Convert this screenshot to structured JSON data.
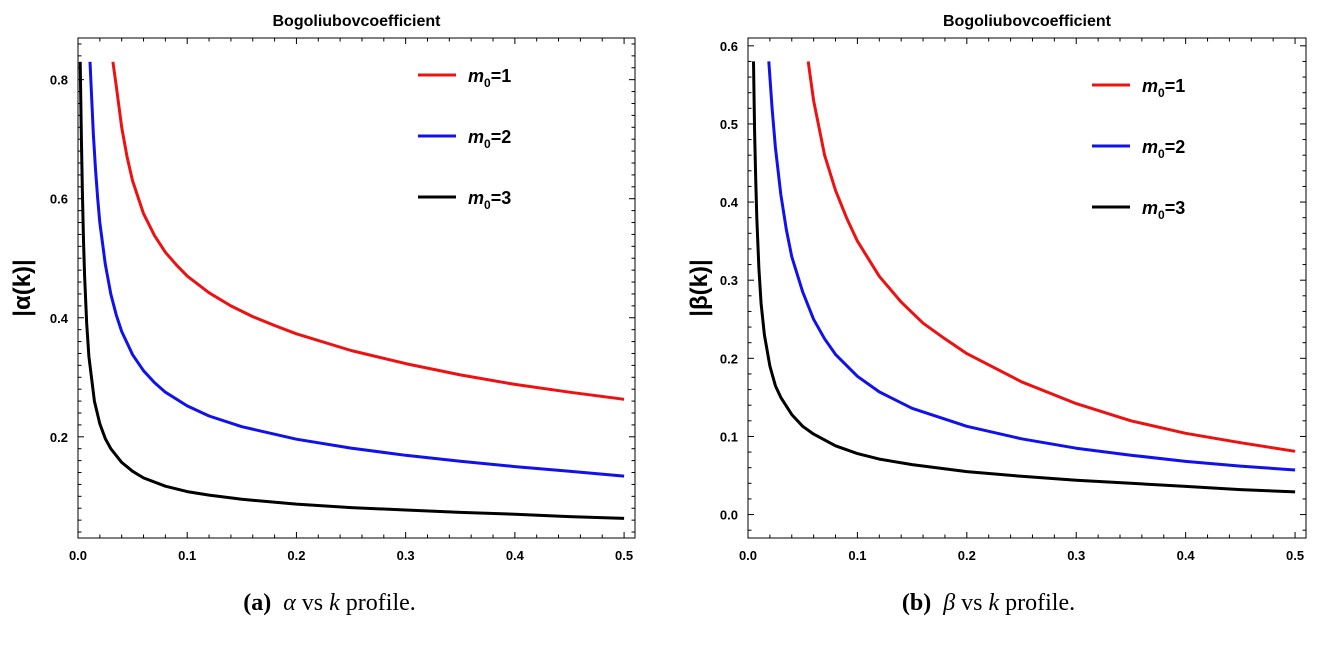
{
  "colors": {
    "red": "#ee1111",
    "blue": "#1111ee",
    "black": "#000000"
  },
  "chart_data": [
    {
      "type": "line",
      "title": "Bogoliubovcoefficient",
      "xlabel": "k",
      "ylabel": "|α(k)|",
      "xlim": [
        0,
        0.51
      ],
      "ylim": [
        0.03,
        0.87
      ],
      "xticks": [
        "0.0",
        "0.1",
        "0.2",
        "0.3",
        "0.4",
        "0.5"
      ],
      "yticks": [
        "0.2",
        "0.4",
        "0.6",
        "0.8"
      ],
      "caption": {
        "label": "(a)",
        "text": "vs",
        "var": "α",
        "var2": "k",
        "rest": "profile."
      },
      "legend_position": "top-right",
      "series": [
        {
          "name": "m0=1",
          "sub": "0",
          "base": "m",
          "eq": "=1",
          "color": "#ee1111",
          "x": [
            0.032,
            0.035,
            0.04,
            0.045,
            0.05,
            0.06,
            0.07,
            0.08,
            0.09,
            0.1,
            0.12,
            0.14,
            0.16,
            0.18,
            0.2,
            0.25,
            0.3,
            0.35,
            0.4,
            0.45,
            0.5
          ],
          "y": [
            0.83,
            0.79,
            0.72,
            0.67,
            0.63,
            0.575,
            0.538,
            0.51,
            0.489,
            0.47,
            0.442,
            0.42,
            0.402,
            0.387,
            0.373,
            0.345,
            0.323,
            0.304,
            0.288,
            0.275,
            0.263
          ]
        },
        {
          "name": "m0=2",
          "sub": "0",
          "base": "m",
          "eq": "=2",
          "color": "#1111ee",
          "x": [
            0.011,
            0.012,
            0.014,
            0.016,
            0.018,
            0.02,
            0.025,
            0.03,
            0.035,
            0.04,
            0.05,
            0.06,
            0.07,
            0.08,
            0.1,
            0.12,
            0.15,
            0.2,
            0.25,
            0.3,
            0.35,
            0.4,
            0.45,
            0.5
          ],
          "y": [
            0.83,
            0.79,
            0.71,
            0.65,
            0.6,
            0.56,
            0.49,
            0.44,
            0.405,
            0.377,
            0.338,
            0.311,
            0.291,
            0.275,
            0.252,
            0.235,
            0.217,
            0.196,
            0.181,
            0.169,
            0.159,
            0.15,
            0.142,
            0.134
          ]
        },
        {
          "name": "m0=3",
          "sub": "0",
          "base": "m",
          "eq": "=3",
          "color": "#000000",
          "x": [
            0.002,
            0.003,
            0.004,
            0.005,
            0.006,
            0.008,
            0.01,
            0.015,
            0.02,
            0.025,
            0.03,
            0.04,
            0.05,
            0.06,
            0.08,
            0.1,
            0.12,
            0.15,
            0.2,
            0.25,
            0.3,
            0.35,
            0.4,
            0.45,
            0.5
          ],
          "y": [
            0.83,
            0.71,
            0.61,
            0.53,
            0.47,
            0.39,
            0.335,
            0.26,
            0.222,
            0.197,
            0.18,
            0.157,
            0.142,
            0.131,
            0.117,
            0.108,
            0.102,
            0.095,
            0.087,
            0.081,
            0.077,
            0.073,
            0.07,
            0.066,
            0.063
          ]
        }
      ]
    },
    {
      "type": "line",
      "title": "Bogoliubovcoefficient",
      "xlabel": "k",
      "ylabel": "|β(k)|",
      "xlim": [
        0,
        0.51
      ],
      "ylim": [
        -0.03,
        0.61
      ],
      "xticks": [
        "0.0",
        "0.1",
        "0.2",
        "0.3",
        "0.4",
        "0.5"
      ],
      "yticks": [
        "0.0",
        "0.1",
        "0.2",
        "0.3",
        "0.4",
        "0.5",
        "0.6"
      ],
      "caption": {
        "label": "(b)",
        "text": "vs",
        "var": "β",
        "var2": "k",
        "rest": "profile."
      },
      "legend_position": "top-right",
      "series": [
        {
          "name": "m0=1",
          "sub": "0",
          "base": "m",
          "eq": "=1",
          "color": "#ee1111",
          "x": [
            0.055,
            0.06,
            0.07,
            0.08,
            0.09,
            0.1,
            0.12,
            0.14,
            0.16,
            0.18,
            0.2,
            0.25,
            0.3,
            0.35,
            0.4,
            0.45,
            0.5
          ],
          "y": [
            0.58,
            0.53,
            0.46,
            0.415,
            0.38,
            0.35,
            0.305,
            0.272,
            0.245,
            0.225,
            0.206,
            0.17,
            0.142,
            0.12,
            0.104,
            0.092,
            0.081
          ]
        },
        {
          "name": "m0=2",
          "sub": "0",
          "base": "m",
          "eq": "=2",
          "color": "#1111ee",
          "x": [
            0.019,
            0.022,
            0.025,
            0.03,
            0.035,
            0.04,
            0.05,
            0.06,
            0.07,
            0.08,
            0.1,
            0.12,
            0.15,
            0.2,
            0.25,
            0.3,
            0.35,
            0.4,
            0.45,
            0.5
          ],
          "y": [
            0.58,
            0.52,
            0.47,
            0.41,
            0.365,
            0.33,
            0.285,
            0.25,
            0.225,
            0.205,
            0.177,
            0.157,
            0.136,
            0.113,
            0.097,
            0.085,
            0.076,
            0.068,
            0.062,
            0.057
          ]
        },
        {
          "name": "m0=3",
          "sub": "0",
          "base": "m",
          "eq": "=3",
          "color": "#000000",
          "x": [
            0.005,
            0.006,
            0.007,
            0.008,
            0.01,
            0.012,
            0.015,
            0.02,
            0.025,
            0.03,
            0.04,
            0.05,
            0.06,
            0.08,
            0.1,
            0.12,
            0.15,
            0.2,
            0.25,
            0.3,
            0.35,
            0.4,
            0.45,
            0.5
          ],
          "y": [
            0.58,
            0.49,
            0.43,
            0.38,
            0.315,
            0.27,
            0.23,
            0.19,
            0.165,
            0.15,
            0.128,
            0.113,
            0.103,
            0.088,
            0.078,
            0.071,
            0.064,
            0.055,
            0.049,
            0.044,
            0.04,
            0.036,
            0.032,
            0.029
          ]
        }
      ]
    }
  ]
}
